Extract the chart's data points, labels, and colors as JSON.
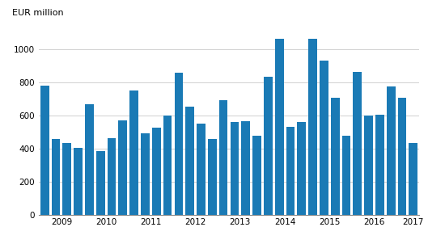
{
  "values": [
    780,
    460,
    435,
    405,
    670,
    385,
    465,
    570,
    750,
    490,
    525,
    600,
    860,
    655,
    550,
    460,
    690,
    560,
    565,
    475,
    835,
    1065,
    530,
    560,
    1065,
    930,
    705,
    475,
    865,
    600,
    605,
    775,
    705,
    435
  ],
  "bar_color": "#1a7ab5",
  "year_labels": [
    "2009",
    "2010",
    "2011",
    "2012",
    "2013",
    "2014",
    "2015",
    "2016",
    "2017"
  ],
  "ylabel": "EUR million",
  "ylim": [
    0,
    1150
  ],
  "yticks": [
    0,
    200,
    400,
    600,
    800,
    1000
  ],
  "background_color": "#ffffff",
  "grid_color": "#d0d0d0",
  "tick_fontsize": 7.5,
  "bar_width": 0.78
}
